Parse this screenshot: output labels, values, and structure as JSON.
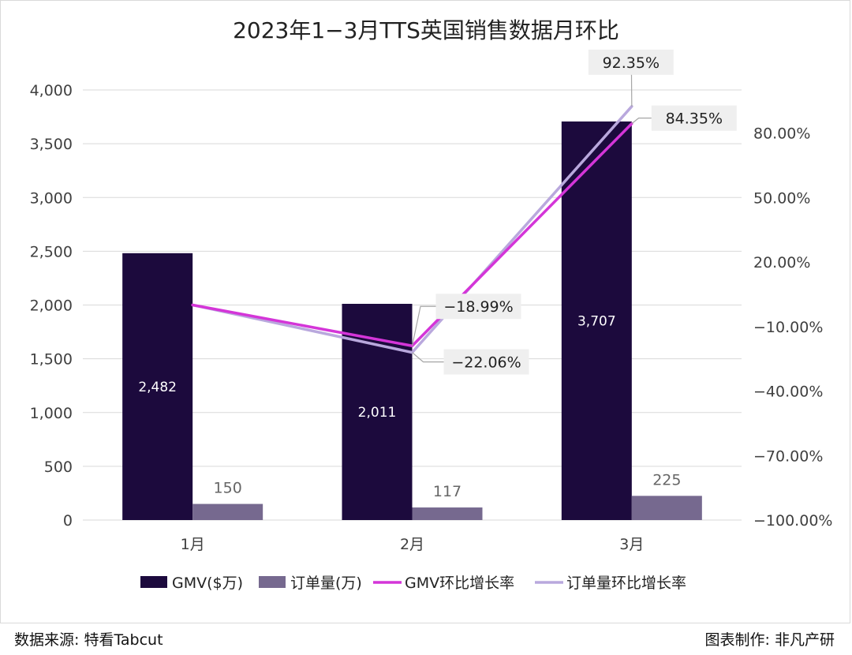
{
  "chart_data": {
    "type": "bar+line",
    "title": "2023年1−3月TTS英国销售数据月环比",
    "categories": [
      "1月",
      "2月",
      "3月"
    ],
    "left_axis": {
      "ylim": [
        0,
        4000
      ],
      "ticks": [
        "0",
        "500",
        "1,000",
        "1,500",
        "2,000",
        "2,500",
        "3,000",
        "3,500",
        "4,000"
      ]
    },
    "right_axis": {
      "ylim": [
        -100,
        100
      ],
      "ticks": [
        "−100.00%",
        "−70.00%",
        "−40.00%",
        "−10.00%",
        "20.00%",
        "50.00%",
        "80.00%"
      ]
    },
    "series": [
      {
        "name": "GMV($万)",
        "kind": "bar",
        "axis": "left",
        "color": "#1c0a3d",
        "values": [
          2482,
          2011,
          3707
        ],
        "labels": [
          "2,482",
          "2,011",
          "3,707"
        ]
      },
      {
        "name": "订单量(万)",
        "kind": "bar",
        "axis": "left",
        "color": "#76698f",
        "values": [
          150,
          117,
          225
        ],
        "labels": [
          "150",
          "117",
          "225"
        ]
      },
      {
        "name": "GMV环比增长率",
        "kind": "line",
        "axis": "right",
        "color": "#d435d8",
        "values": [
          0,
          -18.99,
          84.35
        ],
        "labels": [
          "",
          "−18.99%",
          "84.35%"
        ]
      },
      {
        "name": "订单量环比增长率",
        "kind": "line",
        "axis": "right",
        "color": "#b9a8dd",
        "values": [
          0,
          -22.06,
          92.35
        ],
        "labels": [
          "",
          "−22.06%",
          "92.35%"
        ]
      }
    ],
    "legend_position": "bottom",
    "grid": true
  },
  "footer": {
    "source": "数据来源: 特看Tabcut",
    "credit": "图表制作: 非凡产研"
  }
}
